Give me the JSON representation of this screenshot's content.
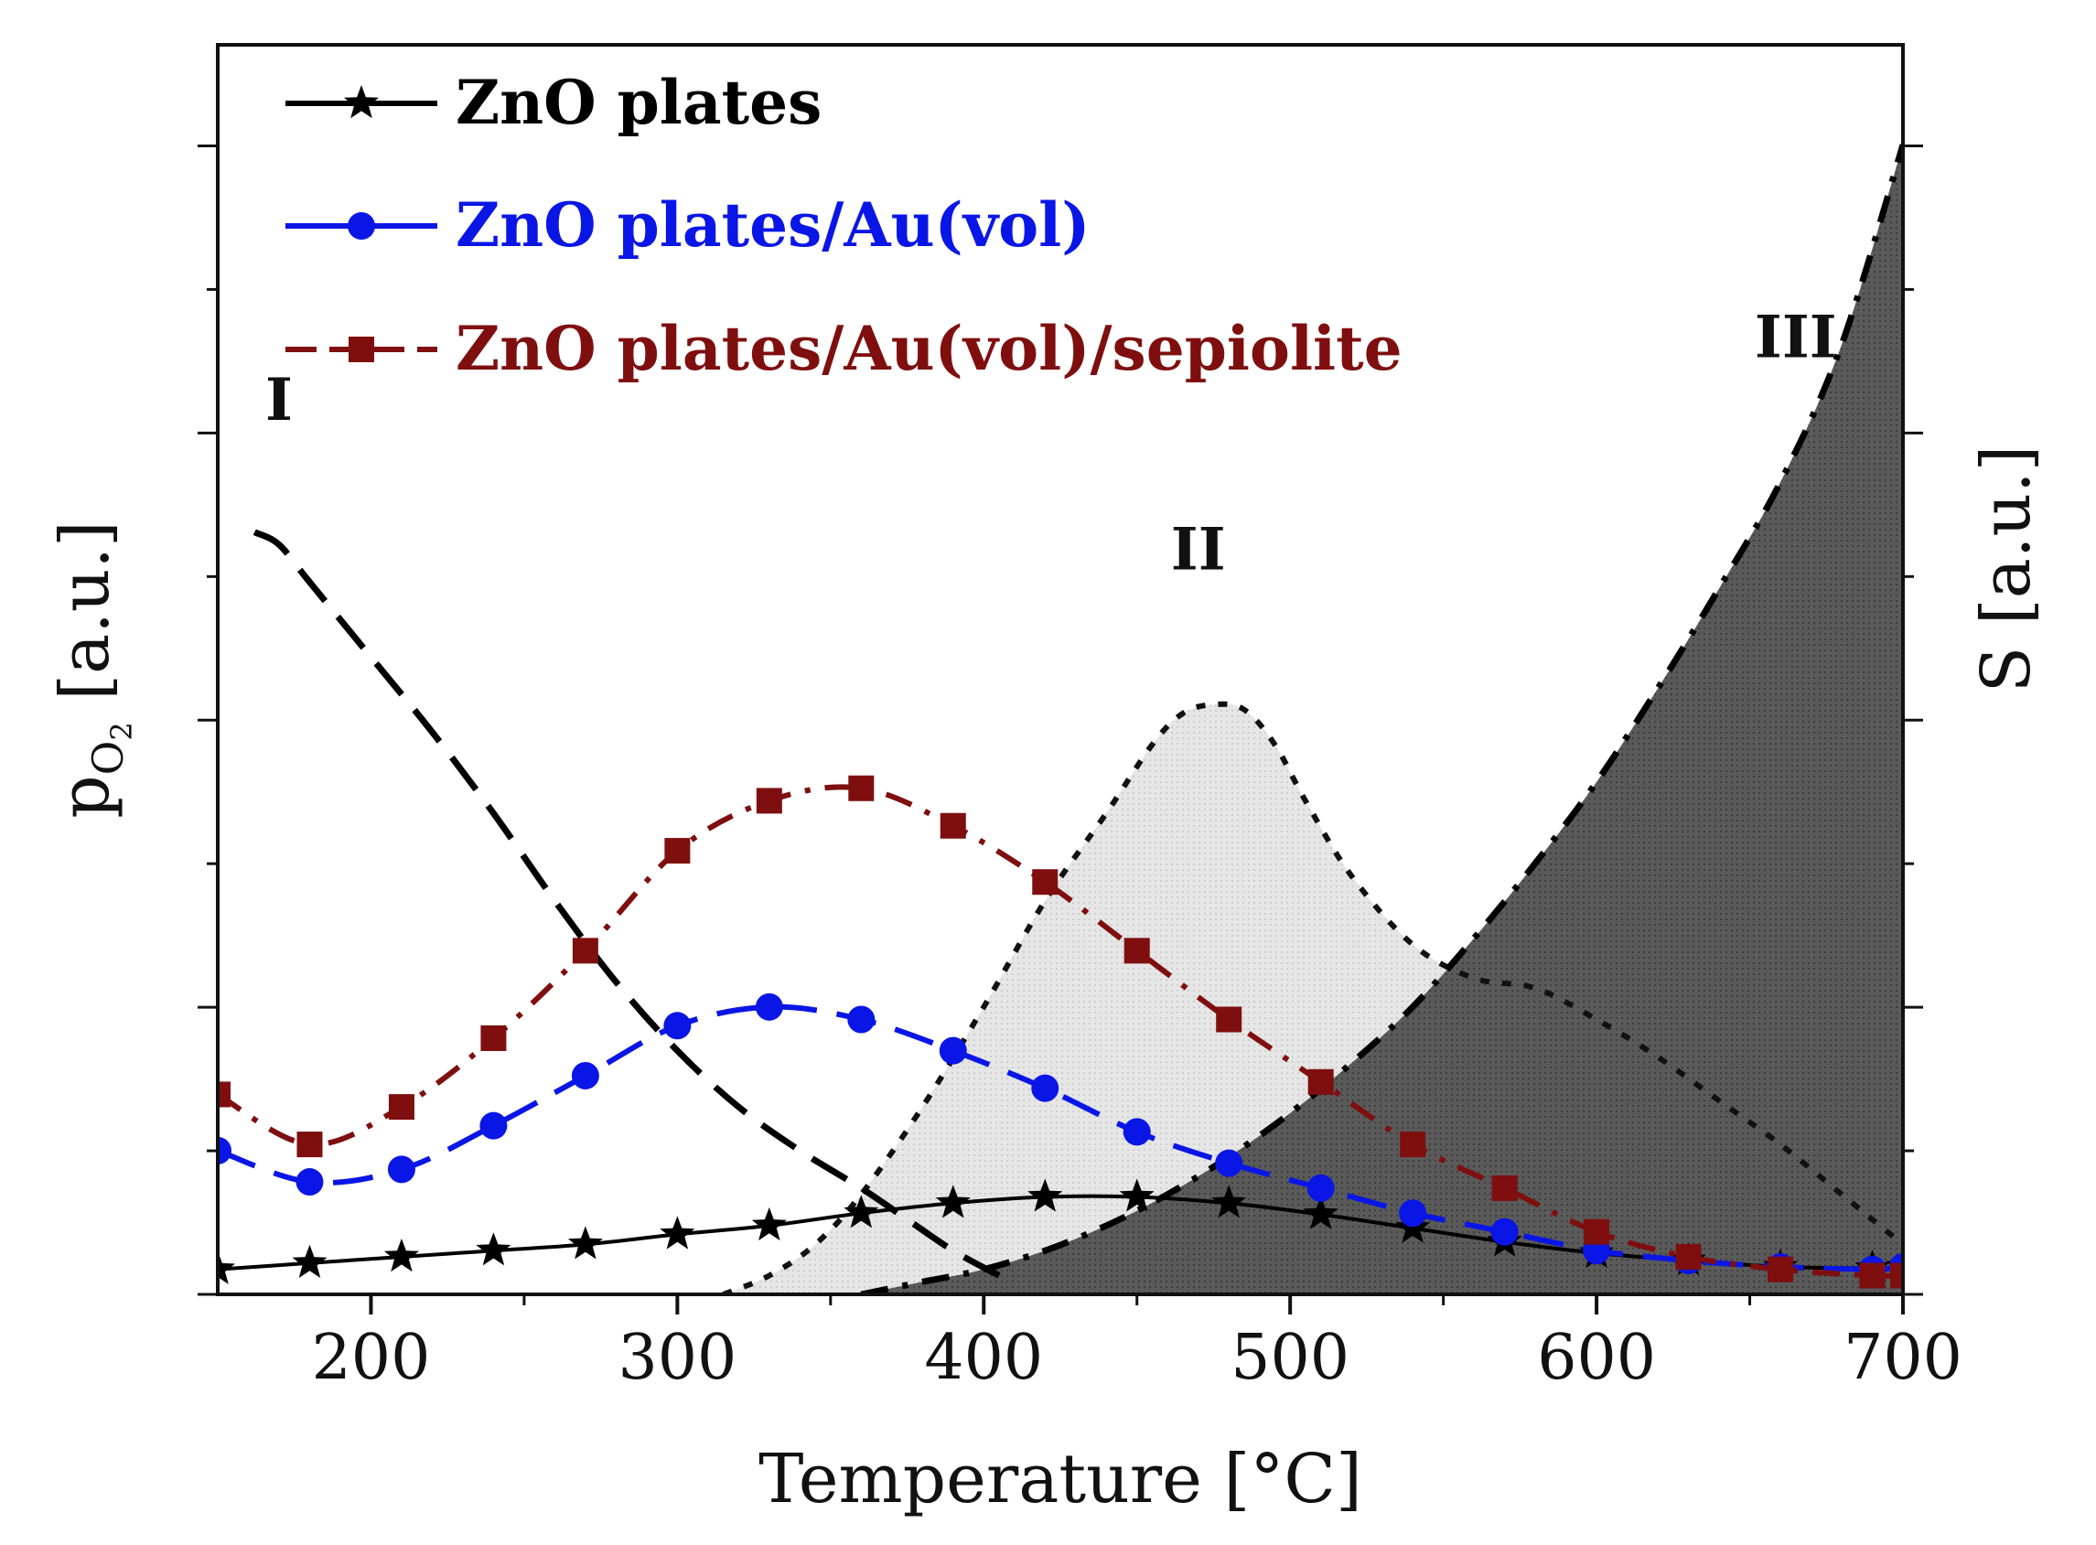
{
  "chart_data": {
    "type": "line",
    "xlabel": "Temperature [°C]",
    "ylabel_left_main": "p",
    "ylabel_left_sub": "O",
    "ylabel_left_subsub": "2",
    "ylabel_left_unit": " [a.u.]",
    "ylabel_right": "S [a.u.]",
    "xlim": [
      150,
      700
    ],
    "ylim": [
      0,
      100
    ],
    "x_ticks": [
      200,
      300,
      400,
      500,
      600,
      700
    ],
    "x_tick_labels": [
      "200",
      "300",
      "400",
      "500",
      "600",
      "700"
    ],
    "y_ticks_count": 9,
    "grid": false,
    "legend_position": "top-left",
    "series": [
      {
        "name": "ZnO plates",
        "color": "#000000",
        "marker": "star",
        "line": "solid",
        "x": [
          150,
          180,
          210,
          240,
          270,
          300,
          330,
          360,
          390,
          420,
          450,
          480,
          510,
          540,
          570,
          600,
          630,
          660,
          690,
          700
        ],
        "y": [
          2.0,
          2.5,
          3.0,
          3.5,
          4.0,
          4.8,
          5.5,
          6.5,
          7.3,
          7.8,
          7.8,
          7.3,
          6.4,
          5.3,
          4.2,
          3.3,
          2.7,
          2.2,
          2.1,
          2.2
        ]
      },
      {
        "name": "ZnO plates/Au(vol)",
        "color": "#0a16e6",
        "marker": "circle",
        "line": "dashed",
        "x": [
          150,
          180,
          210,
          240,
          270,
          300,
          330,
          360,
          390,
          420,
          450,
          480,
          510,
          540,
          570,
          600,
          630,
          660,
          690,
          700
        ],
        "y": [
          11.5,
          9.0,
          10.0,
          13.5,
          17.5,
          21.5,
          23.0,
          22.0,
          19.5,
          16.5,
          13.0,
          10.5,
          8.5,
          6.5,
          5.0,
          3.5,
          2.7,
          2.2,
          2.0,
          2.2
        ]
      },
      {
        "name": "ZnO plates/Au(vol)/sepiolite",
        "color": "#7f0f0f",
        "marker": "square",
        "line": "dash-dot",
        "x": [
          150,
          180,
          210,
          240,
          270,
          300,
          330,
          360,
          390,
          420,
          450,
          480,
          510,
          540,
          570,
          600,
          630,
          660,
          690,
          700
        ],
        "y": [
          16.0,
          12.0,
          15.0,
          20.5,
          27.5,
          35.5,
          39.5,
          40.5,
          37.5,
          33.0,
          27.5,
          22.0,
          17.0,
          12.0,
          8.5,
          5.0,
          3.0,
          2.0,
          1.5,
          1.5
        ]
      }
    ],
    "background_curves": {
      "region_I": {
        "color": "#000000",
        "line": "dashed",
        "x": [
          162,
          170,
          180,
          200,
          220,
          240,
          260,
          280,
          300,
          320,
          340,
          360,
          375,
          390,
          405
        ],
        "y": [
          61,
          60,
          57,
          51,
          45,
          38.5,
          31.5,
          25,
          19.5,
          15,
          11.5,
          8.5,
          6.0,
          3.5,
          1.5
        ]
      },
      "region_II": {
        "color": "#111111",
        "fill": "#dcdcdc",
        "line": "dotted",
        "x": [
          315,
          330,
          345,
          360,
          380,
          400,
          420,
          440,
          455,
          465,
          475,
          485,
          495,
          505,
          520,
          540,
          560,
          580,
          600,
          620,
          640,
          660,
          680,
          700
        ],
        "y": [
          0,
          1.5,
          4,
          8,
          15,
          23,
          31.5,
          38.5,
          44,
          46.5,
          47.2,
          46.8,
          44,
          39.5,
          33.5,
          28,
          25.3,
          24.5,
          22,
          19,
          15.5,
          12,
          8,
          4
        ]
      },
      "region_III": {
        "color": "#000000",
        "fill": "#555555",
        "line": "dash-dot",
        "x": [
          360,
          380,
          400,
          420,
          440,
          460,
          480,
          500,
          520,
          540,
          560,
          580,
          600,
          620,
          640,
          660,
          680,
          700
        ],
        "y": [
          0,
          1.0,
          2.0,
          3.5,
          5.5,
          8.0,
          11,
          14.5,
          18.5,
          23,
          28.5,
          34.5,
          41,
          48.5,
          56.5,
          65,
          76,
          92
        ]
      }
    },
    "annotations": [
      {
        "text": "I",
        "x": 170,
        "y": 70
      },
      {
        "text": "II",
        "x": 470,
        "y": 58
      },
      {
        "text": "III",
        "x": 665,
        "y": 75
      }
    ]
  }
}
